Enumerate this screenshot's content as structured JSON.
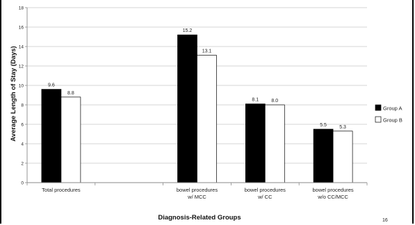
{
  "chart_data": {
    "type": "bar",
    "title": "",
    "xlabel": "Diagnosis-Related Groups",
    "ylabel": "Average Length of Stay (Days)",
    "ylim": [
      0,
      18
    ],
    "yticks": [
      0,
      2,
      4,
      6,
      8,
      10,
      12,
      14,
      16,
      18
    ],
    "grid": true,
    "legend_position": "right",
    "categories": [
      [
        "Total procedures"
      ],
      [
        ""
      ],
      [
        "bowel procedures",
        "w/ MCC"
      ],
      [
        "bowel procedures",
        "w/ CC"
      ],
      [
        "bowel procedures",
        "w/o CC/MCC"
      ]
    ],
    "series": [
      {
        "name": "Group A",
        "color": "#000000",
        "values": [
          9.6,
          null,
          15.2,
          8.1,
          5.5
        ],
        "labels": [
          "9.6",
          "",
          "15.2",
          "8.1",
          "5.5"
        ]
      },
      {
        "name": "Group B",
        "color": "#ffffff",
        "values": [
          8.8,
          null,
          13.1,
          8.0,
          5.3
        ],
        "labels": [
          "8.8",
          "",
          "13.1",
          "8.0",
          "5.3"
        ]
      }
    ]
  },
  "page_number": "16"
}
